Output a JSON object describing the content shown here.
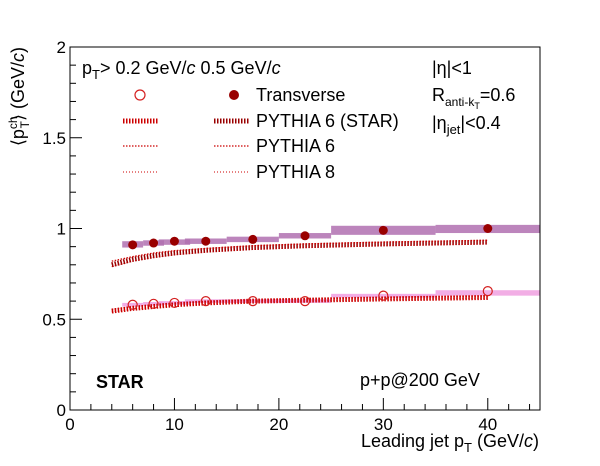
{
  "chart_data": {
    "type": "scatter",
    "xlabel": "Leading jet p_T (GeV/c)",
    "ylabel": "⟨p_T^ch⟩ (GeV/c)",
    "xlim": [
      0,
      45
    ],
    "ylim": [
      0,
      2
    ],
    "x_ticks": [
      "0",
      "10",
      "20",
      "30",
      "40"
    ],
    "y_ticks": [
      "0",
      "0.5",
      "1",
      "1.5",
      "2"
    ],
    "grid": false,
    "legend_position": "top-left",
    "annotations": {
      "cut_line1": "p",
      "cut_line1_sub": "T",
      "cut_line1_tail": "> 0.2 GeV/",
      "cut_italic": "c",
      "cut_line2": " 0.5 GeV/",
      "eta": "|η|<1",
      "r_main": "R",
      "r_sub": "anti-k",
      "r_subsub": "T",
      "r_val": "=0.6",
      "eta_jet": "|η",
      "eta_jet_sub": "jet",
      "eta_jet_tail": "|<0.4",
      "star": "STAR",
      "system": "p+p@200 GeV"
    },
    "legend": [
      {
        "label": "Transverse",
        "marker": "filled-and-open-circle"
      },
      {
        "label": "PYTHIA 6 (STAR)",
        "marker": "band"
      },
      {
        "label": "PYTHIA 6",
        "marker": "dotted"
      },
      {
        "label": "PYTHIA 8",
        "marker": "dotted"
      }
    ],
    "series": [
      {
        "name": "Transverse",
        "cut": "0.5 GeV/c",
        "marker": "filled-circle",
        "x": [
          6,
          8,
          10,
          13,
          17.5,
          22.5,
          30,
          40
        ],
        "y": [
          0.91,
          0.92,
          0.93,
          0.93,
          0.94,
          0.96,
          0.99,
          1.0
        ],
        "sys_low": [
          0.895,
          0.905,
          0.91,
          0.915,
          0.925,
          0.945,
          0.965,
          0.975
        ],
        "sys_high": [
          0.93,
          0.935,
          0.94,
          0.945,
          0.955,
          0.975,
          1.015,
          1.02
        ],
        "sys_halfwidth": [
          1,
          1,
          1.5,
          2,
          2.5,
          2.5,
          5,
          5
        ]
      },
      {
        "name": "Transverse",
        "cut": "0.2 GeV/c",
        "marker": "open-circle",
        "x": [
          6,
          8,
          10,
          13,
          17.5,
          22.5,
          30,
          40
        ],
        "y": [
          0.58,
          0.585,
          0.59,
          0.6,
          0.6,
          0.6,
          0.63,
          0.655
        ],
        "sys_low": [
          0.57,
          0.575,
          0.58,
          0.59,
          0.59,
          0.59,
          0.62,
          0.63
        ],
        "sys_high": [
          0.59,
          0.595,
          0.6,
          0.61,
          0.61,
          0.61,
          0.64,
          0.66
        ],
        "sys_halfwidth": [
          1,
          1,
          1.5,
          2,
          2.5,
          2.5,
          5,
          5
        ]
      },
      {
        "name": "PYTHIA 6 (STAR)",
        "cut": "0.5 GeV/c",
        "x": [
          4,
          6,
          8,
          10,
          13,
          17.5,
          22.5,
          30,
          40
        ],
        "y": [
          0.8,
          0.83,
          0.85,
          0.865,
          0.88,
          0.895,
          0.905,
          0.915,
          0.925
        ]
      },
      {
        "name": "PYTHIA 6 (STAR)",
        "cut": "0.2 GeV/c",
        "x": [
          4,
          6,
          8,
          10,
          13,
          17.5,
          22.5,
          30,
          40
        ],
        "y": [
          0.545,
          0.56,
          0.57,
          0.58,
          0.59,
          0.6,
          0.605,
          0.612,
          0.62
        ]
      },
      {
        "name": "PYTHIA 6",
        "cut": "0.5 GeV/c",
        "x": [
          4,
          6,
          8,
          10,
          13,
          17.5,
          22.5,
          30,
          40
        ],
        "y": [
          0.82,
          0.845,
          0.865,
          0.878,
          0.89,
          0.905,
          0.915,
          0.925,
          0.935
        ]
      },
      {
        "name": "PYTHIA 6",
        "cut": "0.2 GeV/c",
        "x": [
          4,
          6,
          8,
          10,
          13,
          17.5,
          22.5,
          30,
          40
        ],
        "y": [
          0.555,
          0.57,
          0.58,
          0.588,
          0.597,
          0.605,
          0.612,
          0.62,
          0.628
        ]
      },
      {
        "name": "PYTHIA 8",
        "cut": "0.5 GeV/c",
        "x": [
          4,
          6,
          8,
          10,
          13,
          17.5,
          22.5,
          30,
          40
        ],
        "y": [
          0.79,
          0.82,
          0.84,
          0.855,
          0.87,
          0.885,
          0.895,
          0.905,
          0.915
        ]
      },
      {
        "name": "PYTHIA 8",
        "cut": "0.2 GeV/c",
        "x": [
          4,
          6,
          8,
          10,
          13,
          17.5,
          22.5,
          30,
          40
        ],
        "y": [
          0.54,
          0.555,
          0.565,
          0.575,
          0.585,
          0.595,
          0.6,
          0.608,
          0.616
        ]
      }
    ],
    "colors": {
      "data": "#990000",
      "open_marker": "#d42020",
      "pythia": "#cc0000",
      "sys_band_05": "#b070b0",
      "sys_band_02": "#f0a0e0"
    }
  }
}
